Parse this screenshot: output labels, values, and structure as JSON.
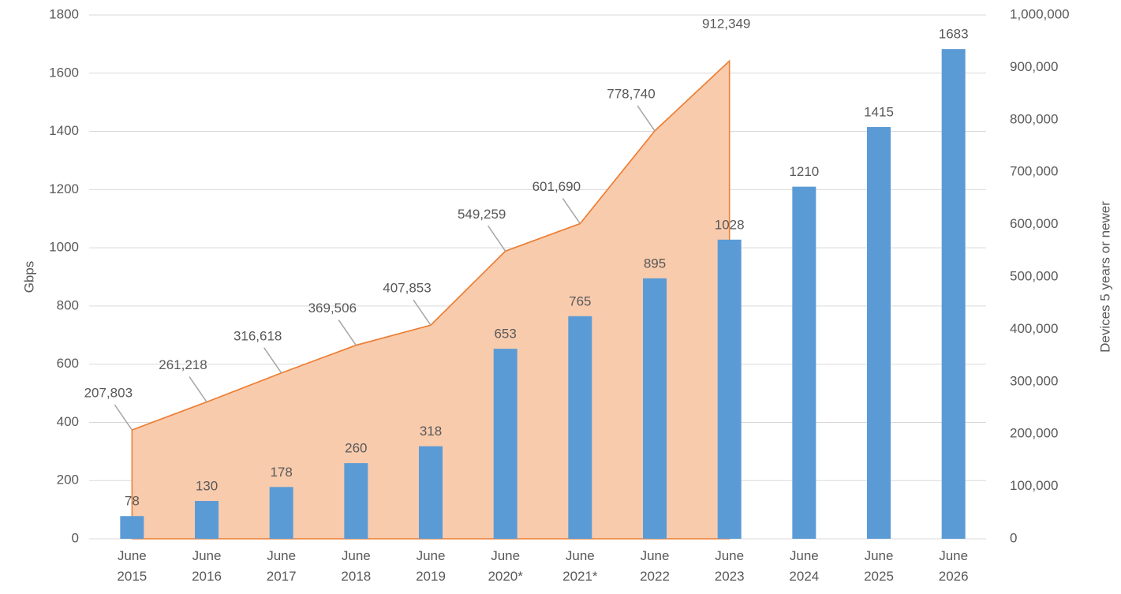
{
  "chart_data": {
    "type": "bar",
    "y_label": "Gbps",
    "y2_label": "Devices 5 years or newer",
    "categories": [
      "June 2015",
      "June 2016",
      "June 2017",
      "June 2018",
      "June 2019",
      "June 2020*",
      "June 2021*",
      "June 2022",
      "June 2023",
      "June 2024",
      "June 2025",
      "June 2026"
    ],
    "series": [
      {
        "type": "bar",
        "color": "#5b9bd5",
        "values": [
          78,
          130,
          178,
          260,
          318,
          653,
          765,
          895,
          1028,
          1210,
          1415,
          1683
        ]
      },
      {
        "type": "area",
        "axis": "y2",
        "color": "#ed7d31",
        "fill": "#f8cbad",
        "values": [
          207803,
          261218,
          316618,
          369506,
          407853,
          549259,
          601690,
          778740,
          912349,
          null,
          null,
          null
        ],
        "value_labels": [
          "207,803",
          "261,218",
          "316,618",
          "369,506",
          "407,853",
          "549,259",
          "601,690",
          "778,740",
          "912,349",
          null,
          null,
          null
        ]
      }
    ],
    "ylim": [
      0,
      1800
    ],
    "yticks": [
      0,
      200,
      400,
      600,
      800,
      1000,
      1200,
      1400,
      1600,
      1800
    ],
    "y2lim": [
      0,
      1000000
    ],
    "y2ticks": [
      0,
      {
        "value": 100000,
        "label": "100,000"
      },
      {
        "value": 200000,
        "label": "200,000"
      },
      {
        "value": 300000,
        "label": "300,000"
      },
      {
        "value": 400000,
        "label": "400,000"
      },
      {
        "value": 500000,
        "label": "500,000"
      },
      {
        "value": 600000,
        "label": "600,000"
      },
      {
        "value": 700000,
        "label": "700,000"
      },
      {
        "value": 800000,
        "label": "800,000"
      },
      {
        "value": 900000,
        "label": "900,000"
      },
      {
        "value": 1000000,
        "label": "1,000,000"
      }
    ],
    "grid": true
  }
}
